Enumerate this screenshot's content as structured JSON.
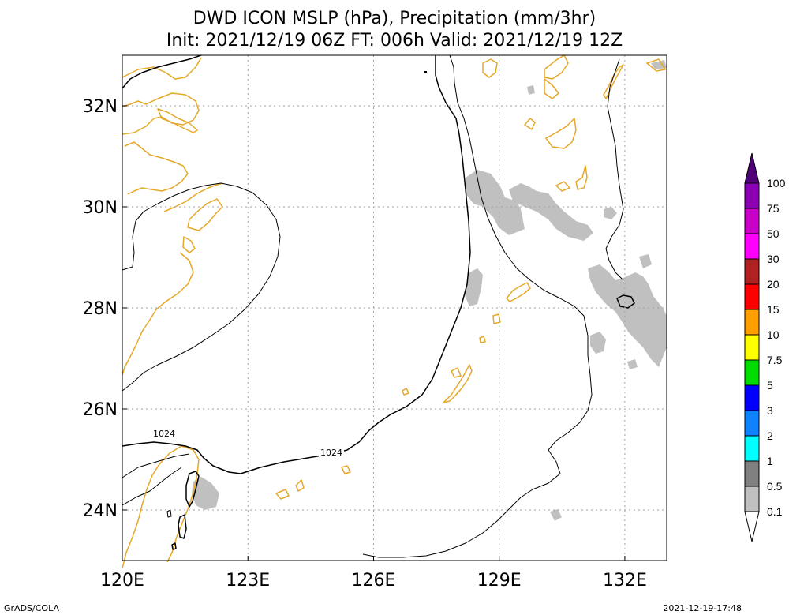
{
  "chart_data": {
    "type": "map",
    "title_line1": "DWD ICON MSLP (hPa), Precipitation (mm/3hr)",
    "title_line2": "Init: 2021/12/19 06Z  FT: 006h  Valid: 2021/12/19 12Z",
    "x_ticks": [
      {
        "value": 120,
        "label": "120E"
      },
      {
        "value": 123,
        "label": "123E"
      },
      {
        "value": 126,
        "label": "126E"
      },
      {
        "value": 129,
        "label": "129E"
      },
      {
        "value": 132,
        "label": "132E"
      }
    ],
    "y_ticks": [
      {
        "value": 24,
        "label": "24N"
      },
      {
        "value": 26,
        "label": "26N"
      },
      {
        "value": 28,
        "label": "28N"
      },
      {
        "value": 30,
        "label": "30N"
      },
      {
        "value": 32,
        "label": "32N"
      }
    ],
    "lon_range": [
      120,
      133
    ],
    "lat_range": [
      23,
      33
    ],
    "grid": true,
    "contour_labels": [
      "1024",
      "1024"
    ],
    "colorbar": {
      "labels": [
        "0.1",
        "0.5",
        "1",
        "2",
        "3",
        "5",
        "7.5",
        "10",
        "15",
        "20",
        "30",
        "50",
        "75",
        "100"
      ],
      "colors": [
        "#c0c0c0",
        "#808080",
        "#00ffff",
        "#0f82ff",
        "#0000ff",
        "#00dc00",
        "#ffff00",
        "#ffa000",
        "#ff0000",
        "#b22222",
        "#ff00ff",
        "#c800c8",
        "#8c00b4",
        "#500078"
      ]
    },
    "coast_color": "#e6a828",
    "precip_color": "#c0c0c0",
    "footer_left": "GrADS/COLA",
    "footer_right": "2021-12-19-17:48"
  }
}
